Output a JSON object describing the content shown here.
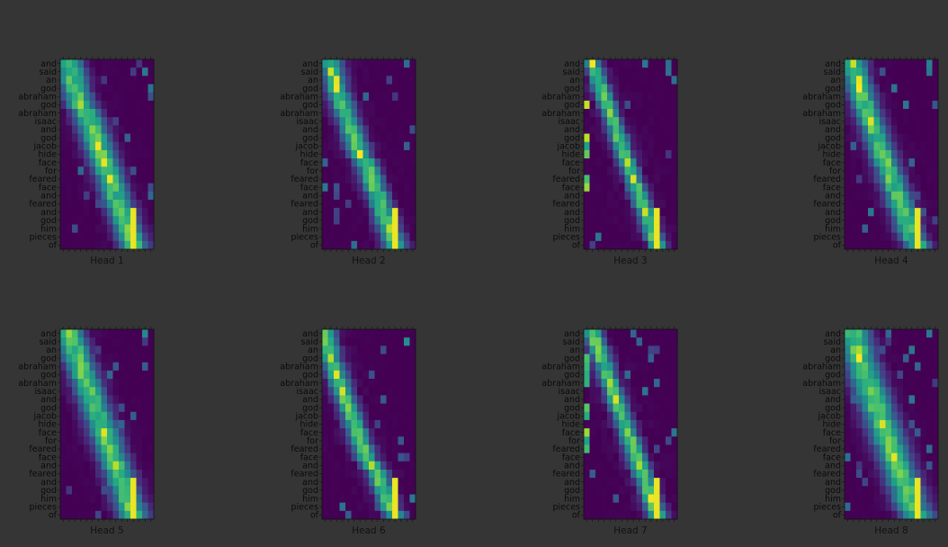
{
  "background_color": "#353535",
  "colormap": "viridis",
  "chart_data": {
    "type": "heatmap",
    "layout": "2 rows x 4 columns grid of attention-weight heatmaps",
    "colorscale": [
      "#440154",
      "#3b528b",
      "#21918c",
      "#5ec962",
      "#fde725"
    ],
    "value_range": [
      0,
      1
    ],
    "y_labels": [
      "and",
      "said",
      "an",
      "god",
      "abraham",
      "god",
      "abraham",
      "isaac",
      "and",
      "god",
      "jacob",
      "hide",
      "face",
      "for",
      "feared",
      "face",
      "and",
      "feared",
      "and",
      "god",
      "him",
      "pieces",
      "of"
    ],
    "x_labels_note": "source-token tick labels along the top are illegible in the image",
    "x_label_count": 16,
    "panels": [
      {
        "title": "Head 1",
        "path": [
          [
            0,
            1
          ],
          [
            3,
            2
          ],
          [
            5,
            3
          ],
          [
            6,
            4
          ],
          [
            8,
            5
          ],
          [
            10,
            6
          ],
          [
            12,
            7
          ],
          [
            14,
            8
          ],
          [
            16,
            9
          ],
          [
            18,
            10
          ],
          [
            20,
            11
          ],
          [
            22,
            12
          ]
        ],
        "spread": 1.6,
        "noise": 0.06,
        "stripe_cols": [],
        "endcol": 12
      },
      {
        "title": "Head 2",
        "path": [
          [
            0,
            1
          ],
          [
            3,
            2
          ],
          [
            5,
            3
          ],
          [
            7,
            4
          ],
          [
            9,
            5
          ],
          [
            11,
            6
          ],
          [
            12,
            7
          ],
          [
            14,
            8
          ],
          [
            16,
            9
          ],
          [
            18,
            10
          ],
          [
            20,
            11
          ],
          [
            22,
            12
          ]
        ],
        "spread": 1.3,
        "noise": 0.05,
        "stripe_cols": [],
        "endcol": 12
      },
      {
        "title": "Head 3",
        "path": [
          [
            0,
            1
          ],
          [
            2,
            2
          ],
          [
            4,
            3
          ],
          [
            6,
            4
          ],
          [
            8,
            5
          ],
          [
            10,
            6
          ],
          [
            12,
            7
          ],
          [
            14,
            8
          ],
          [
            16,
            9
          ],
          [
            18,
            10
          ],
          [
            20,
            11
          ],
          [
            22,
            12
          ]
        ],
        "spread": 1.0,
        "noise": 0.04,
        "stripe_cols": [
          0
        ],
        "endcol": 12
      },
      {
        "title": "Head 4",
        "path": [
          [
            0,
            1
          ],
          [
            3,
            2
          ],
          [
            5,
            3
          ],
          [
            7,
            4
          ],
          [
            9,
            5
          ],
          [
            11,
            6
          ],
          [
            13,
            7
          ],
          [
            15,
            8
          ],
          [
            17,
            9
          ],
          [
            19,
            10
          ],
          [
            21,
            11
          ],
          [
            22,
            12
          ]
        ],
        "spread": 1.5,
        "noise": 0.06,
        "stripe_cols": [],
        "endcol": 12
      },
      {
        "title": "Head 5",
        "path": [
          [
            0,
            1
          ],
          [
            2,
            2
          ],
          [
            4,
            3
          ],
          [
            6,
            4
          ],
          [
            8,
            5
          ],
          [
            10,
            6
          ],
          [
            12,
            7
          ],
          [
            14,
            8
          ],
          [
            16,
            9
          ],
          [
            18,
            10
          ],
          [
            20,
            11
          ],
          [
            22,
            12
          ]
        ],
        "spread": 1.7,
        "noise": 0.05,
        "stripe_cols": [],
        "endcol": 12
      },
      {
        "title": "Head 6",
        "path": [
          [
            0,
            0
          ],
          [
            3,
            1
          ],
          [
            5,
            2
          ],
          [
            7,
            3
          ],
          [
            9,
            4
          ],
          [
            11,
            5
          ],
          [
            13,
            6
          ],
          [
            15,
            7
          ],
          [
            17,
            9
          ],
          [
            19,
            10
          ],
          [
            21,
            11
          ],
          [
            22,
            12
          ]
        ],
        "spread": 1.2,
        "noise": 0.04,
        "stripe_cols": [],
        "endcol": 12
      },
      {
        "title": "Head 7",
        "path": [
          [
            0,
            1
          ],
          [
            2,
            2
          ],
          [
            4,
            3
          ],
          [
            6,
            4
          ],
          [
            8,
            5
          ],
          [
            10,
            6
          ],
          [
            12,
            7
          ],
          [
            14,
            8
          ],
          [
            16,
            9
          ],
          [
            18,
            10
          ],
          [
            20,
            11
          ],
          [
            22,
            12
          ]
        ],
        "spread": 1.1,
        "noise": 0.04,
        "stripe_cols": [
          0
        ],
        "endcol": 12
      },
      {
        "title": "Head 8",
        "path": [
          [
            0,
            1
          ],
          [
            3,
            2
          ],
          [
            5,
            3
          ],
          [
            7,
            4
          ],
          [
            9,
            5
          ],
          [
            11,
            6
          ],
          [
            13,
            7
          ],
          [
            15,
            8
          ],
          [
            17,
            9
          ],
          [
            19,
            10
          ],
          [
            21,
            11
          ],
          [
            22,
            12
          ]
        ],
        "spread": 1.9,
        "noise": 0.07,
        "stripe_cols": [],
        "endcol": 12
      }
    ]
  }
}
